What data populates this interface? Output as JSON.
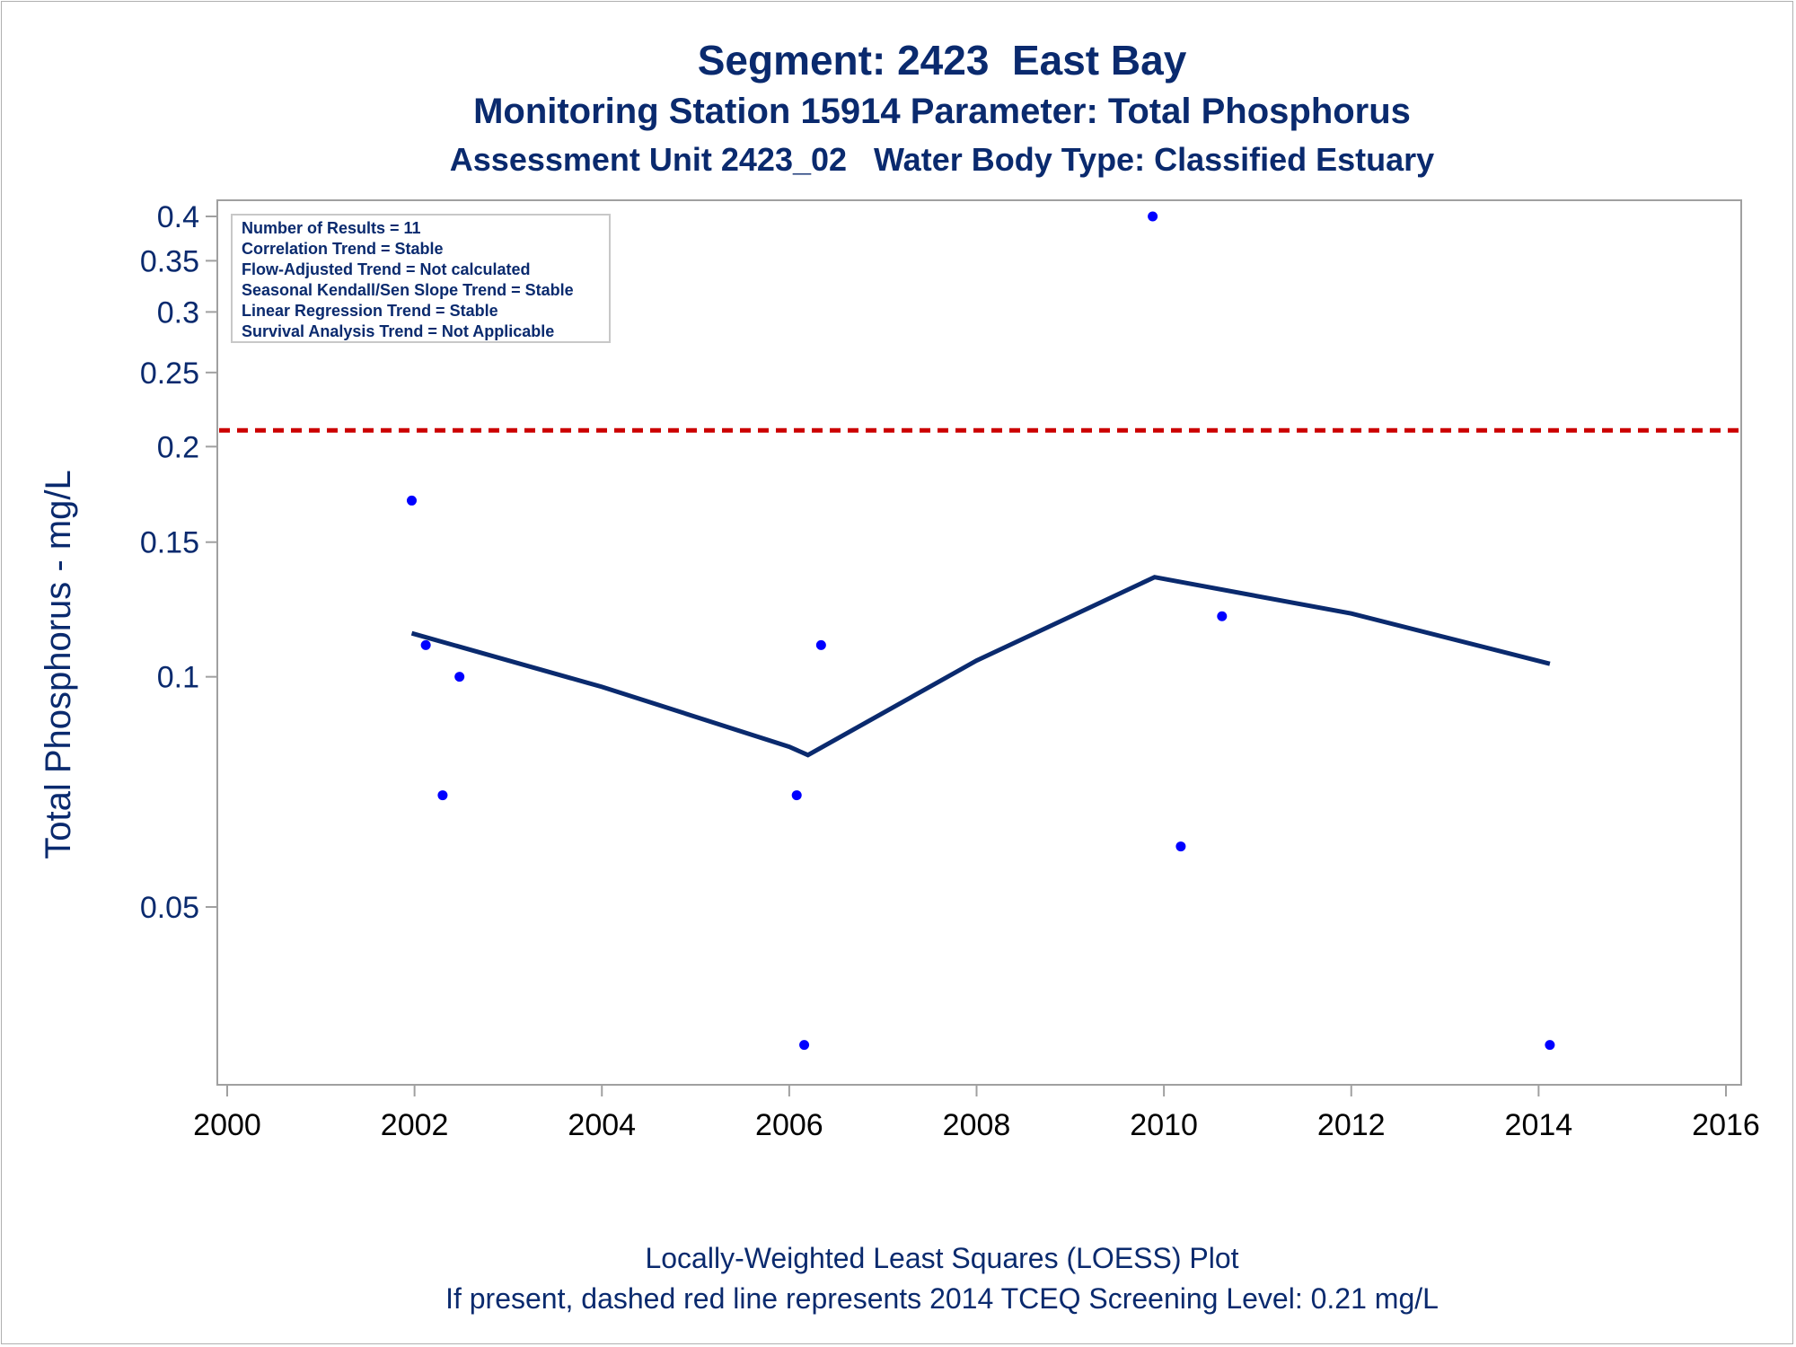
{
  "titles": {
    "line1": "Segment: 2423  East Bay",
    "line2": "Monitoring Station 15914 Parameter: Total Phosphorus",
    "line3": "Assessment Unit 2423_02   Water Body Type: Classified Estuary"
  },
  "footnotes": {
    "line1": "Locally-Weighted Least Squares (LOESS) Plot",
    "line2": "If present, dashed red line represents 2014 TCEQ Screening Level: 0.21 mg/L"
  },
  "stats_box": [
    "Number of Results = 11",
    "Correlation Trend = Stable",
    "Flow-Adjusted Trend = Not calculated",
    "Seasonal Kendall/Sen Slope Trend = Stable",
    "Linear Regression Trend = Stable",
    "Survival Analysis Trend = Not Applicable"
  ],
  "colors": {
    "text": "#0a2a6e",
    "points": "#0000ff",
    "loess": "#0a2a6e",
    "screening_line": "#cc0000",
    "axis": "#a0a0a0"
  },
  "chart_data": {
    "type": "scatter",
    "ylabel": "Total Phosphorus - mg/L",
    "xlabel": "",
    "y_scale": "log",
    "xlim": [
      2000,
      2016
    ],
    "ylim": [
      0.033,
      0.4
    ],
    "x_ticks": [
      "2000",
      "2002",
      "2004",
      "2006",
      "2008",
      "2010",
      "2012",
      "2014",
      "2016"
    ],
    "y_ticks": [
      "0.4",
      "0.35",
      "0.3",
      "0.25",
      "0.2",
      "0.15",
      "0.1",
      "0.05"
    ],
    "y_tick_values": [
      0.4,
      0.35,
      0.3,
      0.25,
      0.2,
      0.15,
      0.1,
      0.05
    ],
    "points": [
      {
        "x": 2001.97,
        "y": 0.17
      },
      {
        "x": 2002.12,
        "y": 0.11
      },
      {
        "x": 2002.48,
        "y": 0.1
      },
      {
        "x": 2002.3,
        "y": 0.07
      },
      {
        "x": 2006.08,
        "y": 0.07
      },
      {
        "x": 2006.34,
        "y": 0.11
      },
      {
        "x": 2006.16,
        "y": 0.033
      },
      {
        "x": 2009.88,
        "y": 0.4
      },
      {
        "x": 2010.18,
        "y": 0.06
      },
      {
        "x": 2010.62,
        "y": 0.12
      },
      {
        "x": 2014.12,
        "y": 0.033
      }
    ],
    "loess_line": [
      {
        "x": 2001.97,
        "y": 0.114
      },
      {
        "x": 2004.0,
        "y": 0.097
      },
      {
        "x": 2006.0,
        "y": 0.081
      },
      {
        "x": 2006.2,
        "y": 0.079
      },
      {
        "x": 2008.0,
        "y": 0.105
      },
      {
        "x": 2009.9,
        "y": 0.135
      },
      {
        "x": 2012.0,
        "y": 0.121
      },
      {
        "x": 2014.12,
        "y": 0.104
      }
    ],
    "screening_level": 0.21
  }
}
